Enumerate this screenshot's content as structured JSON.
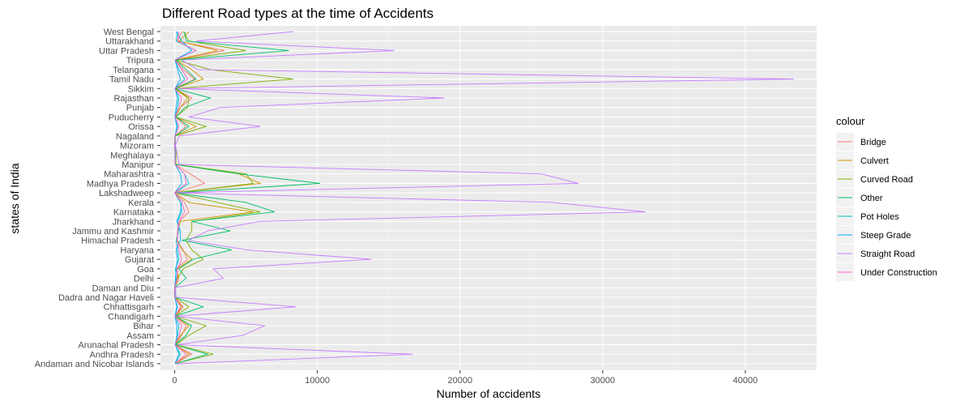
{
  "chart_data": {
    "type": "line",
    "title": "Different Road types at the time of Accidents",
    "xlabel": "Number of accidents",
    "ylabel": "states of India",
    "xlim": [
      -1000,
      45000
    ],
    "x_ticks": [
      0,
      10000,
      20000,
      30000,
      40000
    ],
    "x_tick_labels": [
      "0",
      "10000",
      "20000",
      "30000",
      "40000"
    ],
    "grid": true,
    "legend": {
      "title": "colour",
      "position": "right"
    },
    "categories": [
      "Andaman and Nicobar Islands",
      "Andhra Pradesh",
      "Arunachal Pradesh",
      "Assam",
      "Bihar",
      "Chandigarh",
      "Chhattisgarh",
      "Dadra and Nagar Haveli",
      "Daman and Diu",
      "Delhi",
      "Goa",
      "Gujarat",
      "Haryana",
      "Himachal Pradesh",
      "Jammu and Kashmir",
      "Jharkhand",
      "Karnataka",
      "Kerala",
      "Lakshadweep",
      "Madhya Pradesh",
      "Maharashtra",
      "Manipur",
      "Meghalaya",
      "Mizoram",
      "Nagaland",
      "Orissa",
      "Puducherry",
      "Punjab",
      "Rajasthan",
      "Sikkim",
      "Tamil Nadu",
      "Telangana",
      "Tripura",
      "Uttar Pradesh",
      "Uttarakhand",
      "West Bengal"
    ],
    "series": [
      {
        "name": "Bridge",
        "color": "#F8766D",
        "values": [
          10,
          1200,
          20,
          500,
          800,
          50,
          600,
          10,
          5,
          300,
          100,
          900,
          600,
          100,
          300,
          300,
          1000,
          700,
          2,
          2100,
          1100,
          30,
          20,
          10,
          20,
          800,
          50,
          400,
          1200,
          10,
          1400,
          600,
          50,
          3500,
          200,
          500
        ]
      },
      {
        "name": "Culvert",
        "color": "#CD9600",
        "values": [
          5,
          1000,
          20,
          400,
          1000,
          30,
          500,
          10,
          5,
          200,
          200,
          1200,
          500,
          200,
          200,
          400,
          5500,
          1000,
          2,
          6000,
          4500,
          20,
          30,
          10,
          20,
          1500,
          40,
          400,
          900,
          10,
          2000,
          1200,
          50,
          3000,
          300,
          1000
        ]
      },
      {
        "name": "Curved Road",
        "color": "#7CAE00",
        "values": [
          20,
          2700,
          100,
          1000,
          2200,
          30,
          1000,
          20,
          10,
          200,
          600,
          2000,
          1200,
          800,
          1200,
          1200,
          6000,
          3000,
          2,
          5500,
          5000,
          80,
          100,
          50,
          40,
          2200,
          70,
          900,
          1000,
          50,
          8300,
          2500,
          100,
          5000,
          1000,
          600
        ]
      },
      {
        "name": "Other",
        "color": "#00BE67",
        "values": [
          20,
          2300,
          30,
          800,
          1200,
          20,
          2000,
          20,
          5,
          800,
          300,
          1300,
          4000,
          500,
          3900,
          1200,
          7000,
          5000,
          2,
          10200,
          4500,
          40,
          30,
          10,
          20,
          1000,
          100,
          700,
          2500,
          30,
          1500,
          800,
          100,
          8000,
          800,
          700
        ]
      },
      {
        "name": "Pot Holes",
        "color": "#00BFC4",
        "values": [
          5,
          400,
          20,
          200,
          300,
          10,
          200,
          5,
          2,
          100,
          50,
          300,
          200,
          100,
          300,
          200,
          500,
          400,
          1,
          1000,
          700,
          20,
          10,
          5,
          10,
          200,
          20,
          200,
          300,
          10,
          700,
          300,
          30,
          1500,
          100,
          200
        ]
      },
      {
        "name": "Steep Grade",
        "color": "#00A9FF",
        "values": [
          5,
          300,
          50,
          150,
          150,
          10,
          150,
          5,
          2,
          50,
          100,
          200,
          100,
          400,
          400,
          150,
          400,
          500,
          1,
          500,
          400,
          30,
          50,
          20,
          20,
          150,
          10,
          100,
          200,
          30,
          400,
          200,
          20,
          1200,
          500,
          100
        ]
      },
      {
        "name": "Straight Road",
        "color": "#C77CFF",
        "values": [
          100,
          16700,
          200,
          4800,
          6300,
          100,
          8500,
          100,
          50,
          3400,
          2700,
          13800,
          5000,
          1000,
          2300,
          6000,
          33000,
          26500,
          5,
          28300,
          25700,
          300,
          200,
          50,
          300,
          6000,
          1000,
          3200,
          18900,
          200,
          43400,
          1600,
          500,
          15400,
          1500,
          8300
        ]
      },
      {
        "name": "Under Construction",
        "color": "#FF61CC",
        "values": [
          5,
          800,
          20,
          300,
          500,
          10,
          400,
          5,
          2,
          150,
          200,
          500,
          300,
          200,
          200,
          300,
          700,
          500,
          1,
          800,
          700,
          20,
          20,
          5,
          10,
          300,
          30,
          300,
          500,
          10,
          900,
          500,
          30,
          1500,
          200,
          300
        ]
      }
    ]
  }
}
